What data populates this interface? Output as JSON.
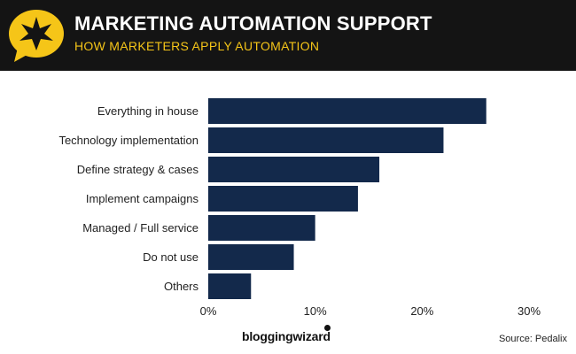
{
  "header": {
    "title": "MARKETING AUTOMATION SUPPORT",
    "subtitle": "HOW MARKETERS APPLY AUTOMATION",
    "badge_icon": "star-speech-bubble-icon"
  },
  "chart_data": {
    "type": "bar",
    "orientation": "horizontal",
    "title": "MARKETING AUTOMATION SUPPORT",
    "subtitle": "HOW MARKETERS APPLY AUTOMATION",
    "categories": [
      "Everything in house",
      "Technology implementation",
      "Define strategy & cases",
      "Implement campaigns",
      "Managed / Full service",
      "Do not use",
      "Others"
    ],
    "values": [
      26,
      22,
      16,
      14,
      10,
      8,
      4
    ],
    "unit": "%",
    "xlim": [
      0,
      30
    ],
    "xticks": [
      0,
      10,
      20,
      30
    ],
    "xtick_labels": [
      "0%",
      "10%",
      "20%",
      "30%"
    ],
    "xlabel": "",
    "ylabel": "",
    "grid": false,
    "bar_color": "#13294b"
  },
  "footer": {
    "brand": "bloggingwizard",
    "source": "Source: Pedalix"
  },
  "colors": {
    "header_bg": "#141414",
    "title": "#ffffff",
    "accent": "#f5c518",
    "bar": "#13294b"
  }
}
